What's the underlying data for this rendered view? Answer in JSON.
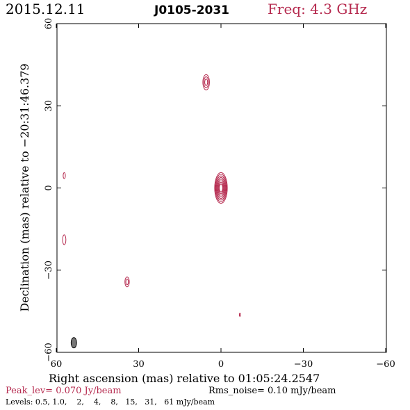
{
  "header": {
    "date": "2015.12.11",
    "source": "J0105-2031",
    "freq": "Freq: 4.3 GHz"
  },
  "footer": {
    "peak": "Peak_lev=  0.070 Jy/beam",
    "rms": "Rms_noise= 0.10 mJy/beam",
    "levels": "Levels: 0.5, 1.0,    2,    4,    8,   15,   31,   61 mJy/beam"
  },
  "colors": {
    "contour": "#b5294e",
    "axis": "#000000",
    "beam": "#777777"
  },
  "chart_data": {
    "type": "contour",
    "xlabel": "Right ascension (mas) relative to 01:05:24.2547",
    "ylabel": "Declination (mas) relative to −20:31:46.379",
    "xlim": [
      60,
      -60
    ],
    "ylim": [
      -60,
      60
    ],
    "xticks": [
      60,
      30,
      0,
      -30,
      -60
    ],
    "yticks": [
      60,
      30,
      0,
      -30,
      -60
    ],
    "xtick_labels": [
      "60",
      "30",
      "0",
      "−30",
      "−60"
    ],
    "ytick_labels": [
      "60",
      "30",
      "0",
      "−30",
      "−60"
    ],
    "contour_levels_mJy": [
      0.5,
      1.0,
      2,
      4,
      8,
      15,
      31,
      61
    ],
    "components": [
      {
        "x": 0.0,
        "y": 0.0,
        "rx": 2.3,
        "ry": 5.6,
        "n": 8
      },
      {
        "x": 5.4,
        "y": 38.6,
        "rx": 1.2,
        "ry": 2.8,
        "n": 3
      },
      {
        "x": 34.2,
        "y": -34.3,
        "rx": 0.8,
        "ry": 1.8,
        "n": 2
      },
      {
        "x": 57.1,
        "y": -18.9,
        "rx": 0.6,
        "ry": 1.8,
        "n": 1
      },
      {
        "x": 57.1,
        "y": 4.5,
        "rx": 0.4,
        "ry": 1.1,
        "n": 1
      },
      {
        "x": -6.9,
        "y": -46.3,
        "rx": 0.2,
        "ry": 0.6,
        "n": 1
      }
    ],
    "beam": {
      "x": 53.6,
      "y": -56.5,
      "rx": 1.0,
      "ry": 1.9
    }
  }
}
